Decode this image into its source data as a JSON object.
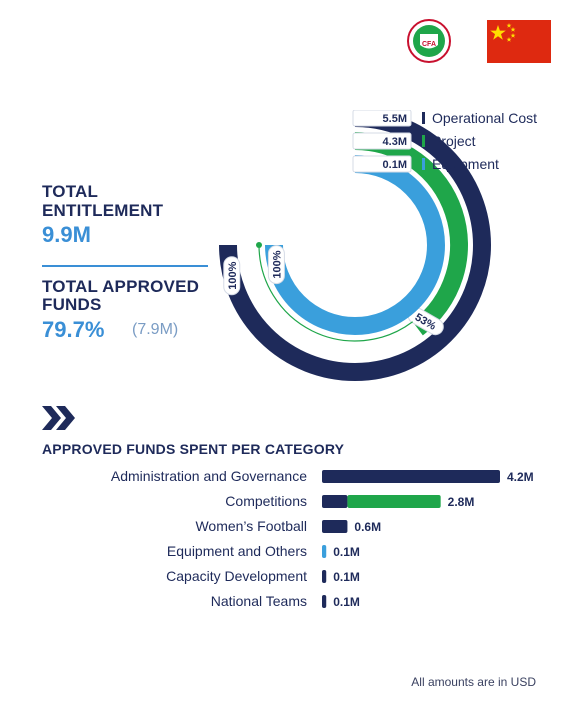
{
  "colors": {
    "navy": "#1e2a5a",
    "green": "#1fa64a",
    "blue": "#3a9fdc",
    "accent_text": "#3a8fd6",
    "flag_red": "#de2910",
    "flag_yellow": "#ffde00"
  },
  "header": {
    "logo_text": "CFA",
    "flag_icon": "china-flag-icon"
  },
  "summary": {
    "entitlement_label_line1": "TOTAL",
    "entitlement_label_line2": "ENTITLEMENT",
    "entitlement_value": "9.9M",
    "approved_label_line1": "TOTAL APPROVED",
    "approved_label_line2": "FUNDS",
    "approved_percent": "79.7%",
    "approved_amount": "(7.9M)"
  },
  "chart_data": [
    {
      "type": "donut",
      "series": [
        {
          "name": "Operational Cost",
          "value_label": "5.5M",
          "percent": 100,
          "percent_label": "100%",
          "color": "#1e2a5a"
        },
        {
          "name": "Project",
          "value_label": "4.3M",
          "percent": 53,
          "percent_label": "53%",
          "color": "#1fa64a"
        },
        {
          "name": "Equipment",
          "value_label": "0.1M",
          "percent": 100,
          "percent_label": "100%",
          "color": "#3a9fdc"
        }
      ]
    },
    {
      "type": "bar",
      "title": "APPROVED FUNDS SPENT PER CATEGORY",
      "xmax": 4.2,
      "categories": [
        {
          "label": "Administration and Governance",
          "segments": [
            {
              "value": 4.2,
              "color": "#1e2a5a"
            }
          ],
          "total_label": "4.2M"
        },
        {
          "label": "Competitions",
          "segments": [
            {
              "value": 0.6,
              "color": "#1e2a5a"
            },
            {
              "value": 2.2,
              "color": "#1fa64a"
            }
          ],
          "total_label": "2.8M"
        },
        {
          "label": "Women’s Football",
          "segments": [
            {
              "value": 0.6,
              "color": "#1e2a5a"
            }
          ],
          "total_label": "0.6M"
        },
        {
          "label": "Equipment and Others",
          "segments": [
            {
              "value": 0.1,
              "color": "#3a9fdc"
            }
          ],
          "total_label": "0.1M"
        },
        {
          "label": "Capacity Development",
          "segments": [
            {
              "value": 0.1,
              "color": "#1e2a5a"
            }
          ],
          "total_label": "0.1M"
        },
        {
          "label": "National Teams",
          "segments": [
            {
              "value": 0.1,
              "color": "#1e2a5a"
            }
          ],
          "total_label": "0.1M"
        }
      ]
    }
  ],
  "footnote": "All amounts are in USD"
}
